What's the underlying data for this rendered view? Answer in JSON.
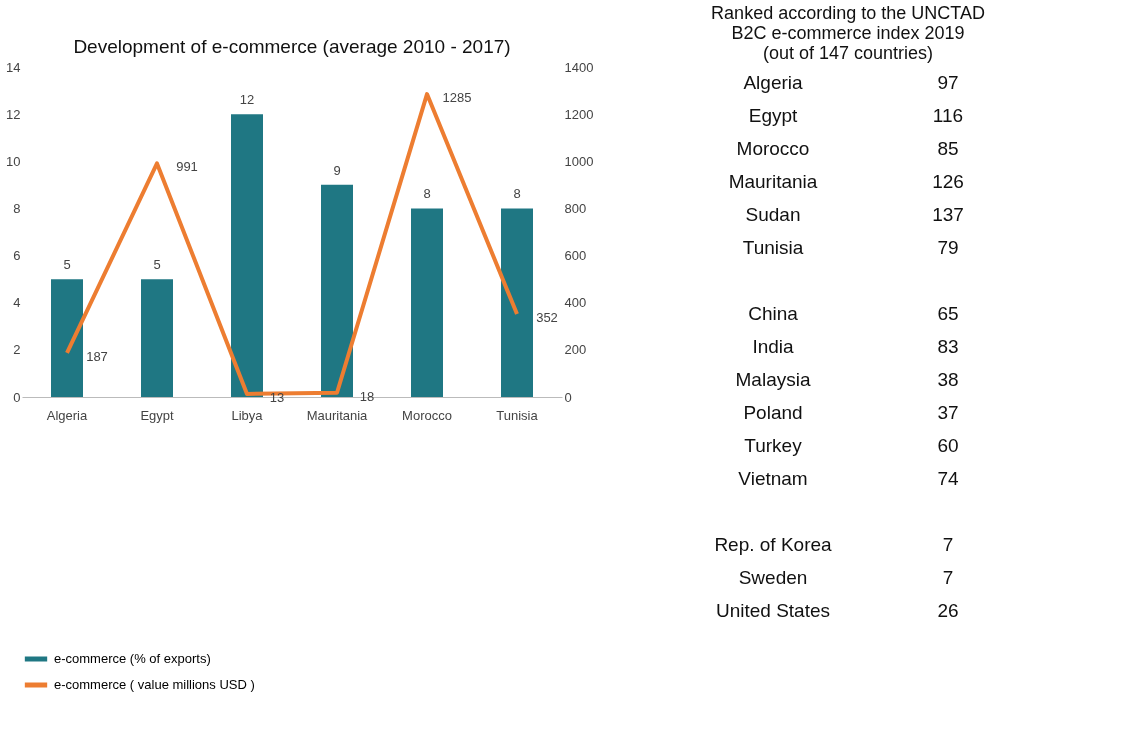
{
  "chart_data": [
    {
      "type": "bar",
      "title": "Development of e-commerce (average 2010 - 2017)",
      "categories": [
        "Algeria",
        "Egypt",
        "Libya",
        "Mauritania",
        "Morocco",
        "Tunisia"
      ],
      "series": [
        {
          "name": "e-commerce (% of exports)",
          "type": "bar",
          "color": "#1f7783",
          "values": [
            5,
            5,
            12,
            9,
            8,
            8
          ]
        },
        {
          "name": "e-commerce ( value millions USD )",
          "type": "line",
          "axis": "y2",
          "color": "#ed7d31",
          "values": [
            187,
            991,
            13,
            18,
            1285,
            352
          ]
        }
      ],
      "ylim": [
        0,
        14
      ],
      "yticks": [
        0,
        2,
        4,
        6,
        8,
        10,
        12,
        14
      ],
      "y2lim": [
        0,
        1400
      ],
      "y2ticks": [
        0,
        200,
        400,
        600,
        800,
        1000,
        1200,
        1400
      ],
      "data_labels": true,
      "legend": "bottom",
      "grid": false,
      "marker": "none"
    },
    {
      "type": "other",
      "title": "Ranked according to the UNCTAD B2C e-commerce index 2019 (out of 147 countries)",
      "categories": [
        "Algeria",
        "Egypt",
        "Morocco",
        "Mauritania",
        "Sudan",
        "Tunisia",
        null,
        "China",
        "India",
        "Malaysia",
        "Poland",
        "Turkey",
        "Vietnam",
        null,
        "Rep. of Korea",
        "Sweden",
        "United States"
      ],
      "values": [
        97,
        116,
        85,
        126,
        137,
        79,
        null,
        65,
        83,
        38,
        37,
        60,
        74,
        null,
        7,
        7,
        26
      ],
      "data_labels": true
    }
  ]
}
